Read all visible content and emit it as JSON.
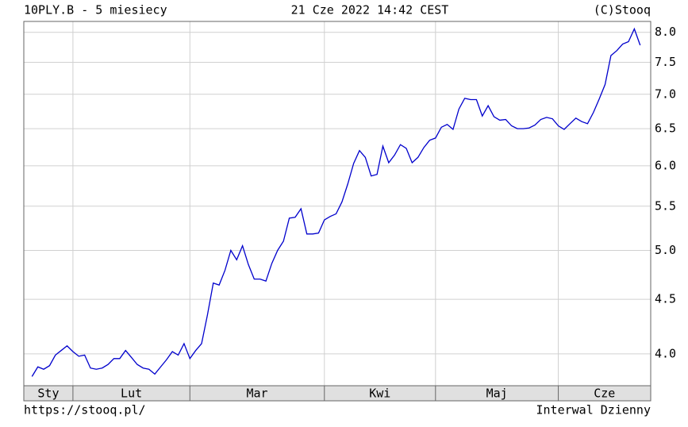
{
  "chart_data": {
    "type": "line",
    "title": "10PLY.B - 5 miesiecy",
    "subtitle": "21 Cze 2022 14:42 CEST",
    "source": "(C)Stooq",
    "footer_left": "https://stooq.pl/",
    "footer_right": "Interwal Dzienny",
    "log_y": true,
    "grid": true,
    "series": [
      {
        "color": "#0000cc",
        "values": [
          3.81,
          3.89,
          3.87,
          3.9,
          3.99,
          4.03,
          4.07,
          4.02,
          3.98,
          3.99,
          3.88,
          3.87,
          3.88,
          3.91,
          3.96,
          3.96,
          4.03,
          3.97,
          3.91,
          3.88,
          3.87,
          3.83,
          3.89,
          3.95,
          4.02,
          3.99,
          4.09,
          3.96,
          4.03,
          4.09,
          4.35,
          4.66,
          4.64,
          4.79,
          5.0,
          4.9,
          5.05,
          4.85,
          4.7,
          4.7,
          4.68,
          4.86,
          5.0,
          5.1,
          5.36,
          5.37,
          5.47,
          5.18,
          5.18,
          5.19,
          5.34,
          5.38,
          5.41,
          5.55,
          5.77,
          6.03,
          6.2,
          6.11,
          5.87,
          5.89,
          6.26,
          6.04,
          6.14,
          6.28,
          6.23,
          6.04,
          6.11,
          6.24,
          6.34,
          6.37,
          6.52,
          6.56,
          6.49,
          6.78,
          6.94,
          6.92,
          6.92,
          6.68,
          6.83,
          6.67,
          6.62,
          6.63,
          6.54,
          6.5,
          6.5,
          6.51,
          6.55,
          6.63,
          6.66,
          6.64,
          6.54,
          6.49,
          6.57,
          6.65,
          6.6,
          6.57,
          6.73,
          6.93,
          7.15,
          7.61,
          7.69,
          7.8,
          7.84,
          8.06,
          7.78
        ]
      }
    ],
    "xlim": [
      -1.4,
      105.8
    ],
    "xticks": [
      {
        "value": -1.4,
        "label": "Sty"
      },
      {
        "value": 7,
        "label": "Lut"
      },
      {
        "value": 27,
        "label": "Mar"
      },
      {
        "value": 50,
        "label": "Kwi"
      },
      {
        "value": 69,
        "label": "Maj"
      },
      {
        "value": 90,
        "label": "Cze"
      }
    ],
    "ylim": [
      3.735,
      8.19
    ],
    "yticks": [
      {
        "value": 4,
        "label": "4.0"
      },
      4.5,
      {
        "value": 5,
        "label": "5.0"
      },
      5.5,
      {
        "value": 6,
        "label": "6.0"
      },
      6.5,
      {
        "value": 7,
        "label": "7.0"
      },
      7.5,
      {
        "value": 8,
        "label": "8.0"
      }
    ]
  }
}
